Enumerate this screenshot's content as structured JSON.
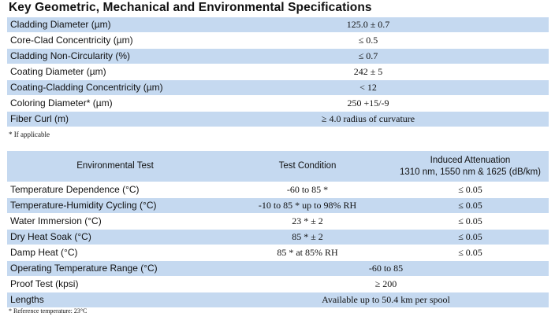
{
  "title": "Key Geometric, Mechanical and Environmental Specifications",
  "spec_rows": [
    {
      "label": "Cladding Diameter (µm)",
      "value": "125.0 ± 0.7"
    },
    {
      "label": "Core-Clad Concentricity (µm)",
      "value": "≤ 0.5"
    },
    {
      "label": "Cladding Non-Circularity (%)",
      "value": "≤ 0.7"
    },
    {
      "label": "Coating Diameter (µm)",
      "value": "242 ± 5"
    },
    {
      "label": "Coating-Cladding Concentricity (µm)",
      "value": "< 12"
    },
    {
      "label": "Coloring Diameter* (µm)",
      "value": "250  +15/-9"
    },
    {
      "label": "Fiber Curl (m)",
      "value": "≥ 4.0 radius of curvature"
    }
  ],
  "note_applicable": "* If applicable",
  "env_headers": {
    "test": "Environmental Test",
    "condition": "Test Condition",
    "attenuation_line1": "Induced Attenuation",
    "attenuation_line2": "1310 nm, 1550 nm & 1625 (dB/km)"
  },
  "env_rows": [
    {
      "test": "Temperature Dependence  (°C)",
      "condition": "-60 to 85 *",
      "attenuation": "≤ 0.05"
    },
    {
      "test": "Temperature-Humidity Cycling  (°C)",
      "condition": "-10 to 85 * up to 98% RH",
      "attenuation": "≤ 0.05"
    },
    {
      "test": "Water Immersion  (°C)",
      "condition": "23 * ± 2",
      "attenuation": "≤ 0.05"
    },
    {
      "test": "Dry Heat Soak  (°C)",
      "condition": "85 * ± 2",
      "attenuation": "≤ 0.05"
    },
    {
      "test": "Damp Heat  (°C)",
      "condition": "85 * at 85% RH",
      "attenuation": "≤ 0.05"
    }
  ],
  "env_span_rows": [
    {
      "label": "Operating Temperature Range (°C)",
      "value": "-60 to 85"
    },
    {
      "label": "Proof Test (kpsi)",
      "value": "≥ 200"
    },
    {
      "label": "Lengths",
      "value": "Available up to 50.4 km per spool"
    }
  ],
  "note_reference": "* Reference temperature:  23°C"
}
